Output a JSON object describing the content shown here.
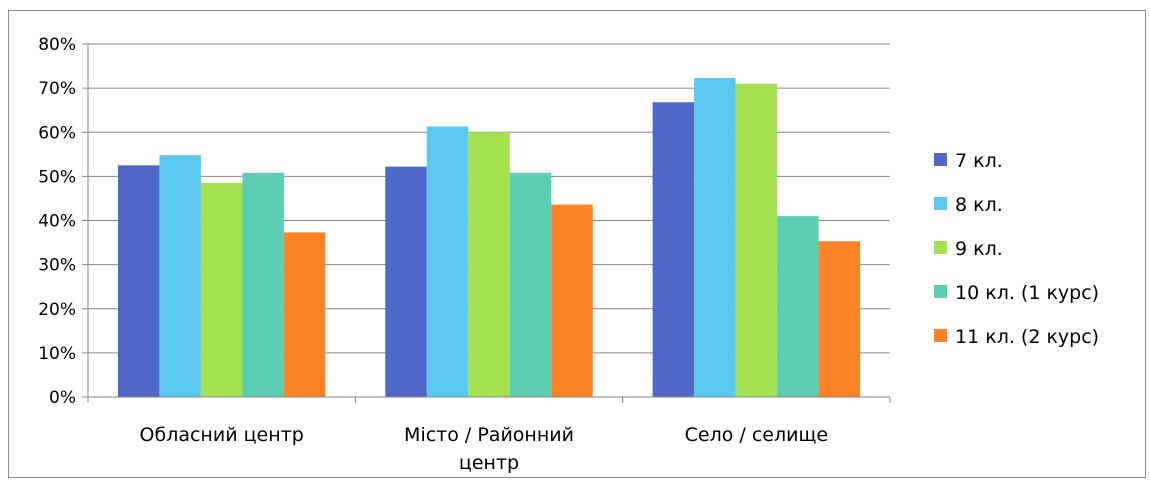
{
  "chart_data": {
    "type": "bar",
    "categories": [
      "Обласний центр",
      "Місто / Районний центр",
      "Село / селище"
    ],
    "category_lines": [
      [
        "Обласний центр"
      ],
      [
        "Місто / Районний",
        "центр"
      ],
      [
        "Село / селище"
      ]
    ],
    "series": [
      {
        "name": "7 кл.",
        "color": "#5067c8",
        "values": [
          0.525,
          0.522,
          0.668
        ]
      },
      {
        "name": "8 кл.",
        "color": "#5bc9ef",
        "values": [
          0.548,
          0.613,
          0.723
        ]
      },
      {
        "name": "9 кл.",
        "color": "#a5e251",
        "values": [
          0.485,
          0.6,
          0.71
        ]
      },
      {
        "name": "10 кл. (1 курс)",
        "color": "#5ccfb3",
        "values": [
          0.508,
          0.508,
          0.41
        ]
      },
      {
        "name": "11 кл. (2 курс)",
        "color": "#fb8225",
        "values": [
          0.373,
          0.436,
          0.353
        ]
      }
    ],
    "y_ticks": [
      "0%",
      "10%",
      "20%",
      "30%",
      "40%",
      "50%",
      "60%",
      "70%",
      "80%"
    ],
    "ylim": [
      0,
      0.8
    ],
    "grid": true,
    "legend_position": "right",
    "title": "",
    "xlabel": "",
    "ylabel": ""
  }
}
